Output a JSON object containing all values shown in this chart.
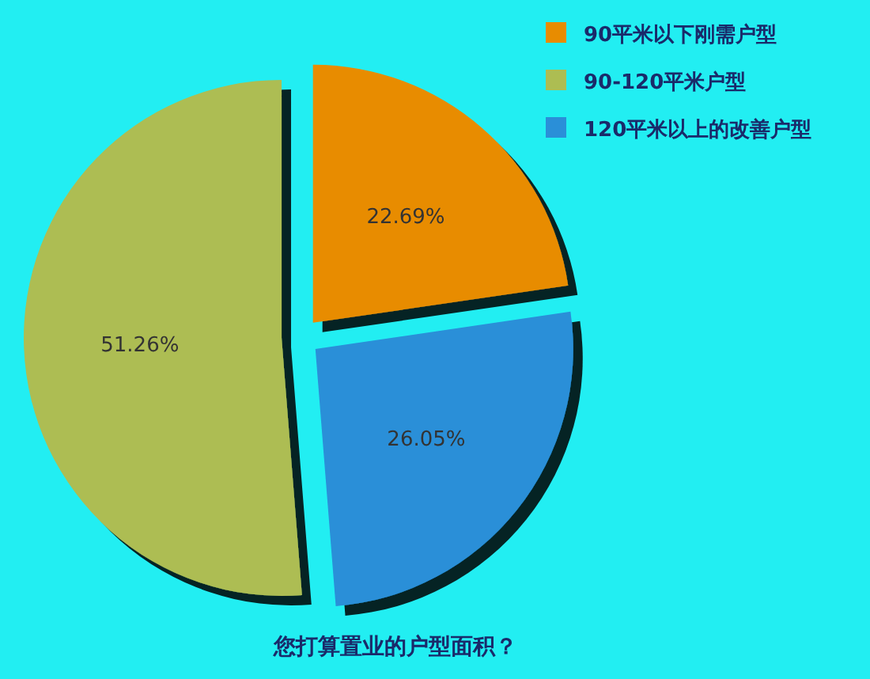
{
  "chart_data": {
    "type": "pie",
    "title": "您打算置业的户型面积？",
    "categories": [
      "90平米以下刚需户型",
      "90-120平米户型",
      "120平米以上的改善户型"
    ],
    "values": [
      22.69,
      51.26,
      26.05
    ],
    "colors": [
      "#e88c00",
      "#adbd52",
      "#2a8fd8"
    ],
    "value_labels": [
      "22.69%",
      "51.26%",
      "26.05%"
    ],
    "legend": "top right"
  }
}
